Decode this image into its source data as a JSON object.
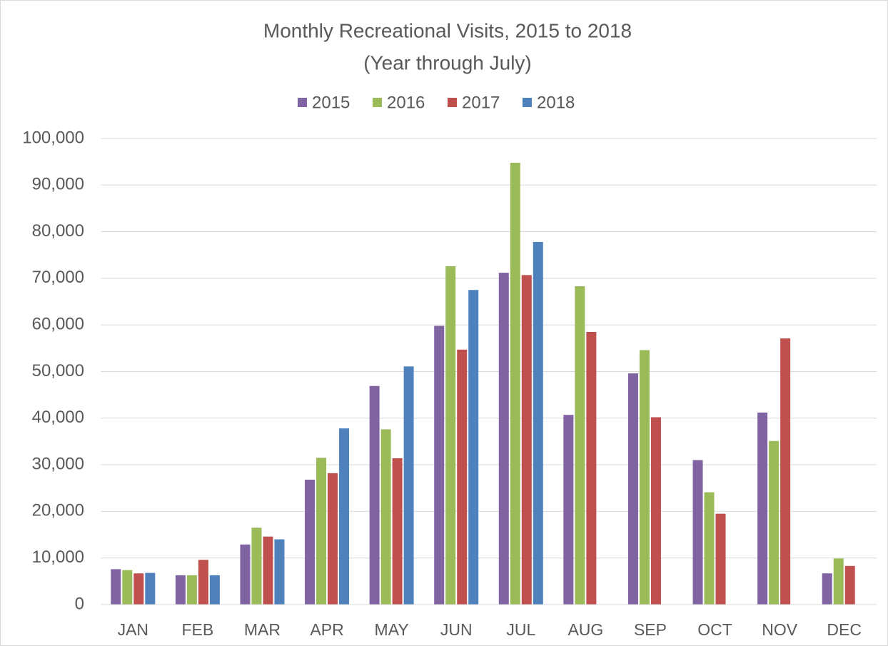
{
  "chart_data": {
    "type": "bar",
    "title": "Monthly Recreational Visits, 2015 to 2018",
    "subtitle": "(Year through July)",
    "categories": [
      "JAN",
      "FEB",
      "MAR",
      "APR",
      "MAY",
      "JUN",
      "JUL",
      "AUG",
      "SEP",
      "OCT",
      "NOV",
      "DEC"
    ],
    "series": [
      {
        "name": "2015",
        "color": "#8064a2",
        "values": [
          7600,
          6300,
          12900,
          26800,
          46900,
          59800,
          71200,
          40700,
          49600,
          31000,
          41200,
          6700
        ]
      },
      {
        "name": "2016",
        "color": "#9bbb59",
        "values": [
          7400,
          6300,
          16500,
          31500,
          37600,
          72600,
          94800,
          68300,
          54600,
          24100,
          35100,
          9900
        ]
      },
      {
        "name": "2017",
        "color": "#c0504d",
        "values": [
          6700,
          9600,
          14600,
          28200,
          31400,
          54700,
          70700,
          58500,
          40200,
          19500,
          57100,
          8300
        ]
      },
      {
        "name": "2018",
        "color": "#4f81bd",
        "values": [
          6800,
          6300,
          14000,
          37800,
          51100,
          67500,
          77800,
          null,
          null,
          null,
          null,
          null
        ]
      }
    ],
    "ylim": [
      0,
      100000
    ],
    "yticks": [
      0,
      {
        "value": 10000,
        "label": "10,000"
      },
      {
        "value": 20000,
        "label": "20,000"
      },
      {
        "value": 30000,
        "label": "30,000"
      },
      {
        "value": 40000,
        "label": "40,000"
      },
      {
        "value": 50000,
        "label": "50,000"
      },
      {
        "value": 60000,
        "label": "60,000"
      },
      {
        "value": 70000,
        "label": "70,000"
      },
      {
        "value": 80000,
        "label": "80,000"
      },
      {
        "value": 90000,
        "label": "90,000"
      },
      {
        "value": 100000,
        "label": "100,000"
      }
    ],
    "grid": true,
    "legend": "top"
  }
}
